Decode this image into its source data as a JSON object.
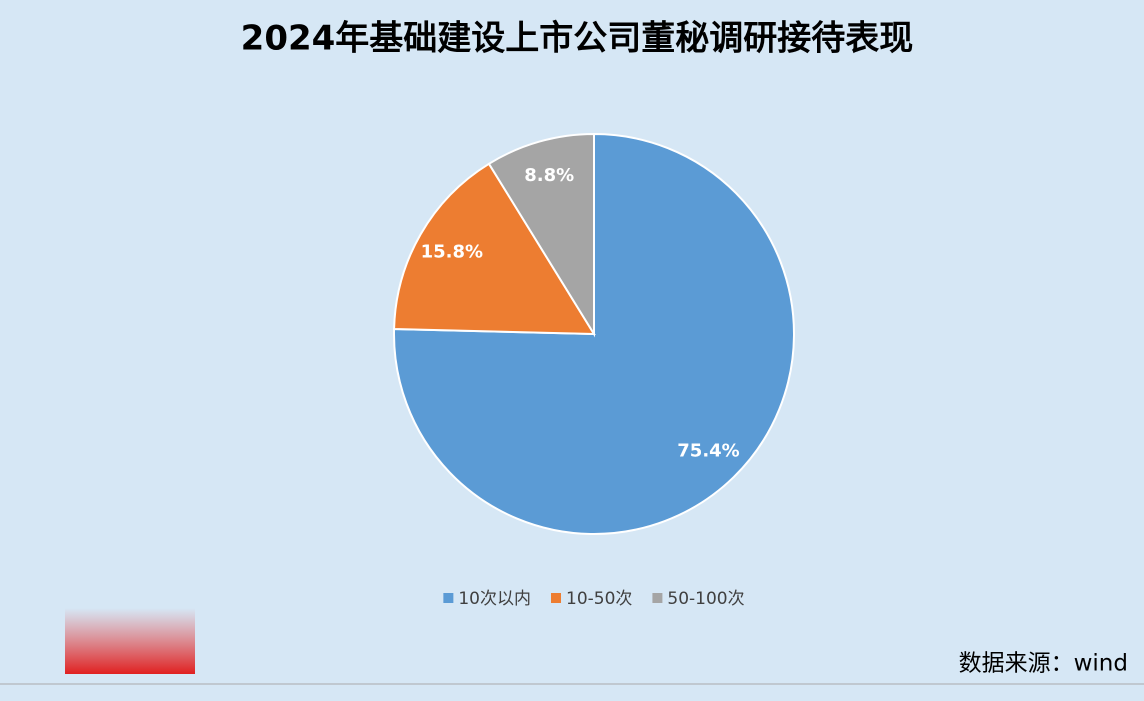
{
  "chart_data": {
    "type": "pie",
    "title": "2024年基础建设上市公司董秘调研接待表现",
    "categories": [
      "10次以内",
      "10-50次",
      "50-100次"
    ],
    "values": [
      75.4,
      15.8,
      8.8
    ],
    "value_labels": [
      "75.4%",
      "15.8%",
      "8.8%"
    ],
    "colors": [
      "#5b9bd5",
      "#ed7d31",
      "#a5a5a5"
    ],
    "legend": "bottom",
    "source": "数据来源：wind"
  }
}
